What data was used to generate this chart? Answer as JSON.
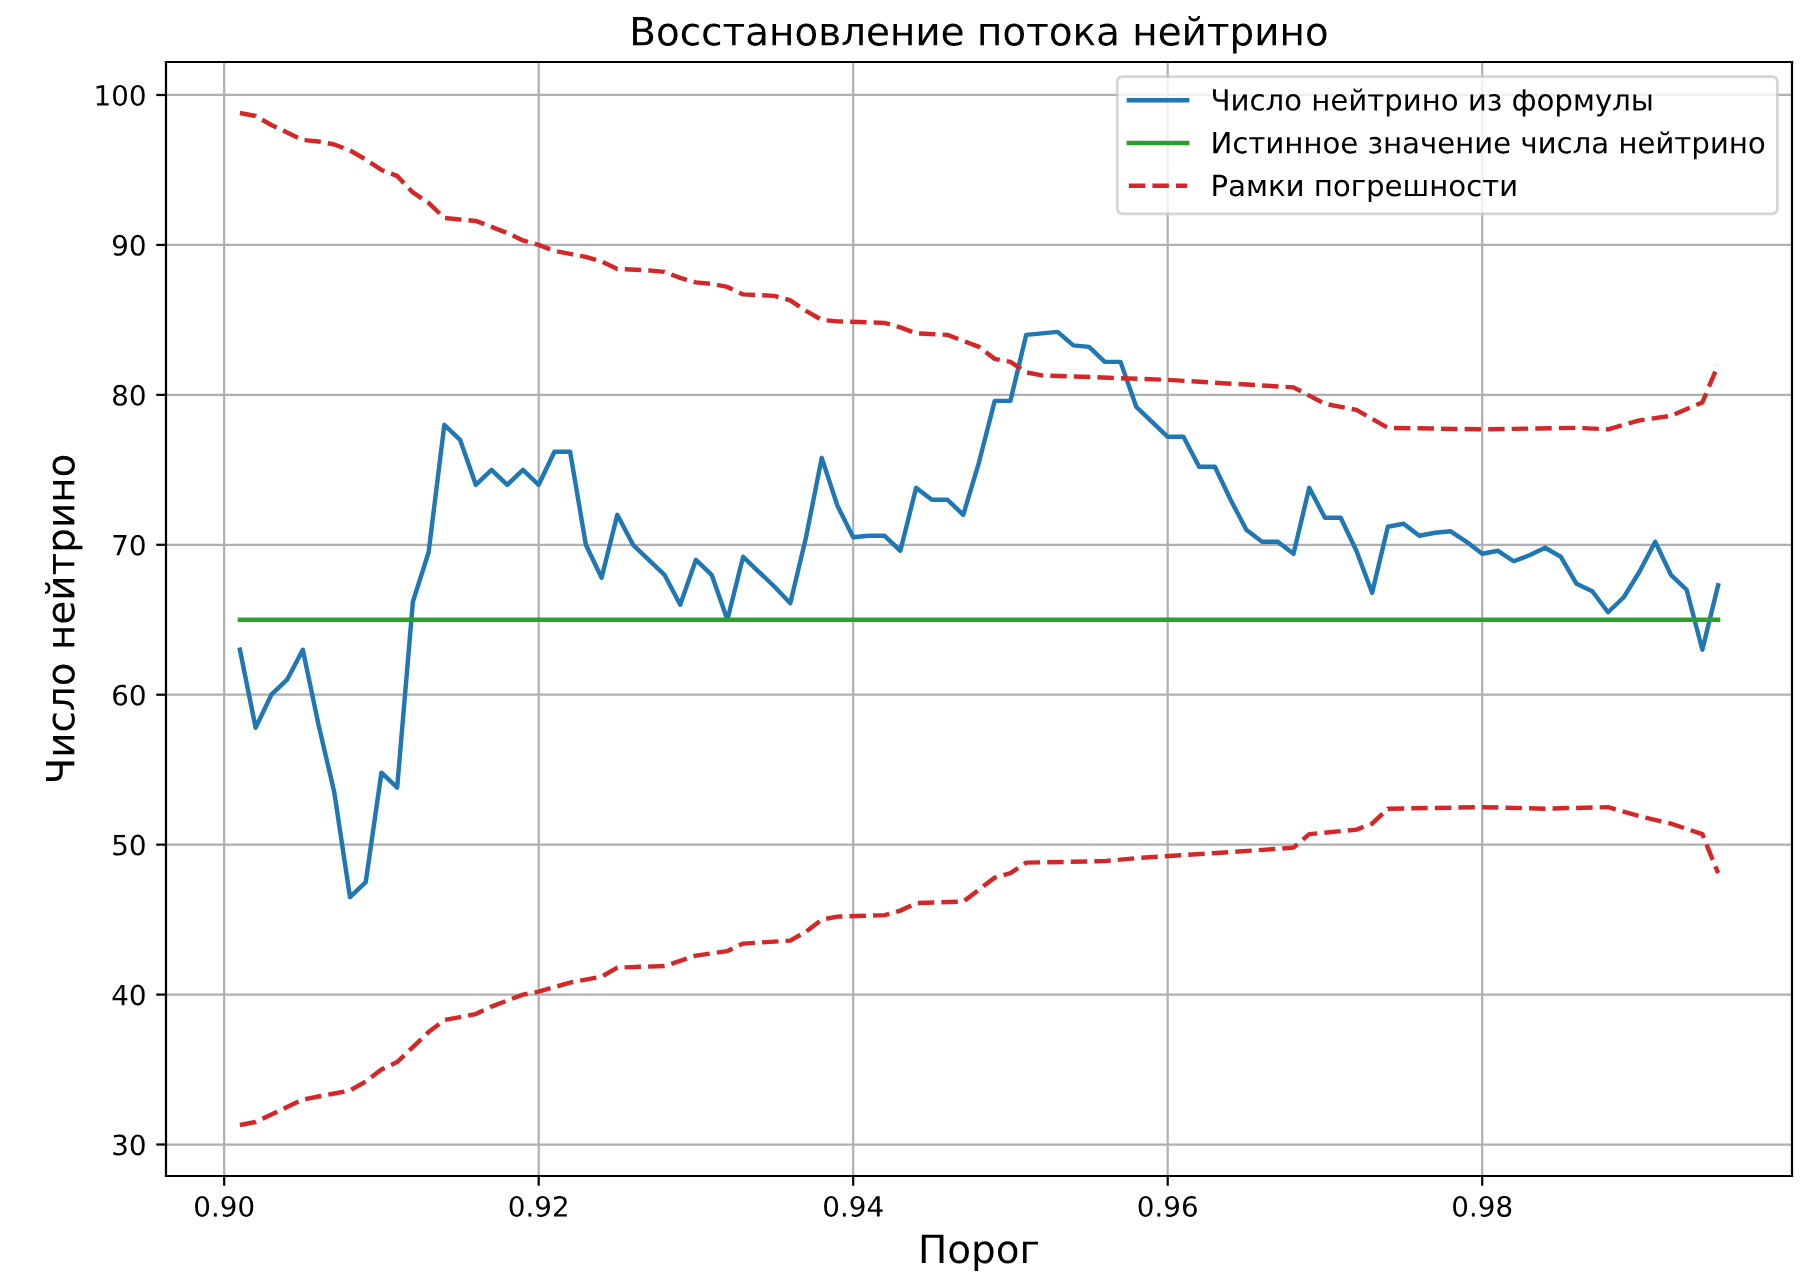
{
  "chart_data": {
    "type": "line",
    "title": "Восстановление потока нейтрино",
    "xlabel": "Порог",
    "ylabel": "Число нейтрино",
    "xlim": [
      0.8963,
      0.9997
    ],
    "ylim": [
      27.9,
      102.2
    ],
    "xticks": [
      {
        "value": 0.9,
        "label": "0.90"
      },
      {
        "value": 0.92,
        "label": "0.92"
      },
      {
        "value": 0.94,
        "label": "0.94"
      },
      {
        "value": 0.96,
        "label": "0.96"
      },
      {
        "value": 0.98,
        "label": "0.98"
      }
    ],
    "yticks": [
      30,
      40,
      50,
      60,
      70,
      80,
      90,
      100
    ],
    "grid": true,
    "legend": "top right",
    "series": [
      {
        "name": "Число нейтрино из формулы",
        "color": "#1f77b4",
        "line_style": "solid",
        "x": [
          0.901,
          0.902,
          0.903,
          0.904,
          0.905,
          0.906,
          0.907,
          0.908,
          0.909,
          0.91,
          0.911,
          0.912,
          0.913,
          0.914,
          0.915,
          0.916,
          0.917,
          0.918,
          0.919,
          0.92,
          0.921,
          0.922,
          0.923,
          0.924,
          0.925,
          0.926,
          0.927,
          0.928,
          0.929,
          0.93,
          0.931,
          0.932,
          0.933,
          0.934,
          0.935,
          0.936,
          0.937,
          0.938,
          0.939,
          0.94,
          0.941,
          0.942,
          0.943,
          0.944,
          0.945,
          0.946,
          0.947,
          0.948,
          0.949,
          0.95,
          0.951,
          0.952,
          0.953,
          0.954,
          0.955,
          0.956,
          0.957,
          0.958,
          0.959,
          0.96,
          0.961,
          0.962,
          0.963,
          0.964,
          0.965,
          0.966,
          0.967,
          0.968,
          0.969,
          0.97,
          0.971,
          0.972,
          0.973,
          0.974,
          0.975,
          0.976,
          0.977,
          0.978,
          0.979,
          0.98,
          0.981,
          0.982,
          0.983,
          0.984,
          0.985,
          0.986,
          0.987,
          0.988,
          0.989,
          0.99,
          0.991,
          0.992,
          0.993,
          0.994,
          0.995
        ],
        "values": [
          63,
          57.8,
          60,
          61,
          63,
          58,
          53.5,
          46.5,
          47.5,
          54.8,
          53.8,
          66.2,
          69.5,
          78,
          77,
          74,
          75,
          74,
          75,
          74,
          76.2,
          76.2,
          70,
          67.8,
          72,
          70,
          69,
          68,
          66,
          69,
          68,
          65,
          69.2,
          68.2,
          67.2,
          66.1,
          70.5,
          75.8,
          72.6,
          70.5,
          70.6,
          70.6,
          69.6,
          73.8,
          73,
          73,
          72,
          75.5,
          79.6,
          79.6,
          84,
          84.1,
          84.2,
          83.3,
          83.2,
          82.2,
          82.2,
          79.2,
          78.2,
          77.2,
          77.2,
          75.2,
          75.2,
          73,
          71,
          70.2,
          70.2,
          69.4,
          73.8,
          71.8,
          71.8,
          69.6,
          66.8,
          71.2,
          71.4,
          70.6,
          70.8,
          70.9,
          70.2,
          69.4,
          69.6,
          68.9,
          69.3,
          69.8,
          69.2,
          67.4,
          66.9,
          65.5,
          66.5,
          68.2,
          70.2,
          68,
          67,
          63,
          67.3
        ]
      },
      {
        "name": "Истинное значение числа нейтрино",
        "color": "#2ca02c",
        "line_style": "solid",
        "x": [
          0.901,
          0.995
        ],
        "values": [
          65,
          65
        ]
      },
      {
        "name": "Рамки погрешности",
        "color": "#d62728",
        "line_style": "dashed",
        "x": [
          0.901,
          0.902,
          0.903,
          0.904,
          0.905,
          0.906,
          0.907,
          0.908,
          0.909,
          0.91,
          0.911,
          0.912,
          0.913,
          0.914,
          0.915,
          0.916,
          0.917,
          0.918,
          0.919,
          0.92,
          0.921,
          0.922,
          0.923,
          0.924,
          0.925,
          0.927,
          0.928,
          0.929,
          0.93,
          0.931,
          0.932,
          0.933,
          0.935,
          0.936,
          0.937,
          0.938,
          0.939,
          0.942,
          0.943,
          0.944,
          0.946,
          0.947,
          0.948,
          0.949,
          0.95,
          0.951,
          0.952,
          0.96,
          0.968,
          0.97,
          0.972,
          0.974,
          0.98,
          0.986,
          0.988,
          0.99,
          0.992,
          0.994,
          0.995
        ],
        "values": [
          98.8,
          98.6,
          98,
          97.5,
          97,
          96.9,
          96.7,
          96.3,
          95.7,
          95,
          94.6,
          93.5,
          92.8,
          91.8,
          91.7,
          91.6,
          91.2,
          90.8,
          90.3,
          90,
          89.6,
          89.4,
          89.2,
          88.9,
          88.4,
          88.3,
          88.2,
          87.8,
          87.5,
          87.4,
          87.2,
          86.7,
          86.6,
          86.3,
          85.6,
          85,
          84.9,
          84.8,
          84.5,
          84.1,
          84,
          83.6,
          83.2,
          82.4,
          82.2,
          81.5,
          81.3,
          81,
          80.5,
          79.4,
          79,
          77.8,
          77.7,
          77.8,
          77.7,
          78.3,
          78.6,
          79.5,
          82
        ]
      },
      {
        "color": "#d62728",
        "line_style": "dashed",
        "x": [
          0.901,
          0.902,
          0.903,
          0.904,
          0.905,
          0.906,
          0.907,
          0.908,
          0.909,
          0.91,
          0.911,
          0.912,
          0.913,
          0.914,
          0.915,
          0.916,
          0.917,
          0.918,
          0.919,
          0.92,
          0.922,
          0.924,
          0.925,
          0.928,
          0.93,
          0.932,
          0.933,
          0.936,
          0.937,
          0.938,
          0.939,
          0.942,
          0.943,
          0.944,
          0.947,
          0.948,
          0.949,
          0.95,
          0.951,
          0.956,
          0.958,
          0.964,
          0.968,
          0.969,
          0.972,
          0.973,
          0.974,
          0.98,
          0.984,
          0.988,
          0.99,
          0.992,
          0.994,
          0.995
        ],
        "values": [
          31.3,
          31.5,
          32,
          32.5,
          33,
          33.2,
          33.4,
          33.6,
          34.2,
          35,
          35.5,
          36.5,
          37.5,
          38.3,
          38.5,
          38.7,
          39.2,
          39.6,
          40,
          40.2,
          40.8,
          41.2,
          41.8,
          41.9,
          42.6,
          42.9,
          43.4,
          43.6,
          44.2,
          45,
          45.2,
          45.3,
          45.6,
          46.1,
          46.2,
          47,
          47.8,
          48.1,
          48.8,
          48.9,
          49.1,
          49.5,
          49.8,
          50.7,
          51,
          51.4,
          52.4,
          52.5,
          52.4,
          52.5,
          51.9,
          51.4,
          50.7,
          48.1
        ]
      }
    ]
  }
}
